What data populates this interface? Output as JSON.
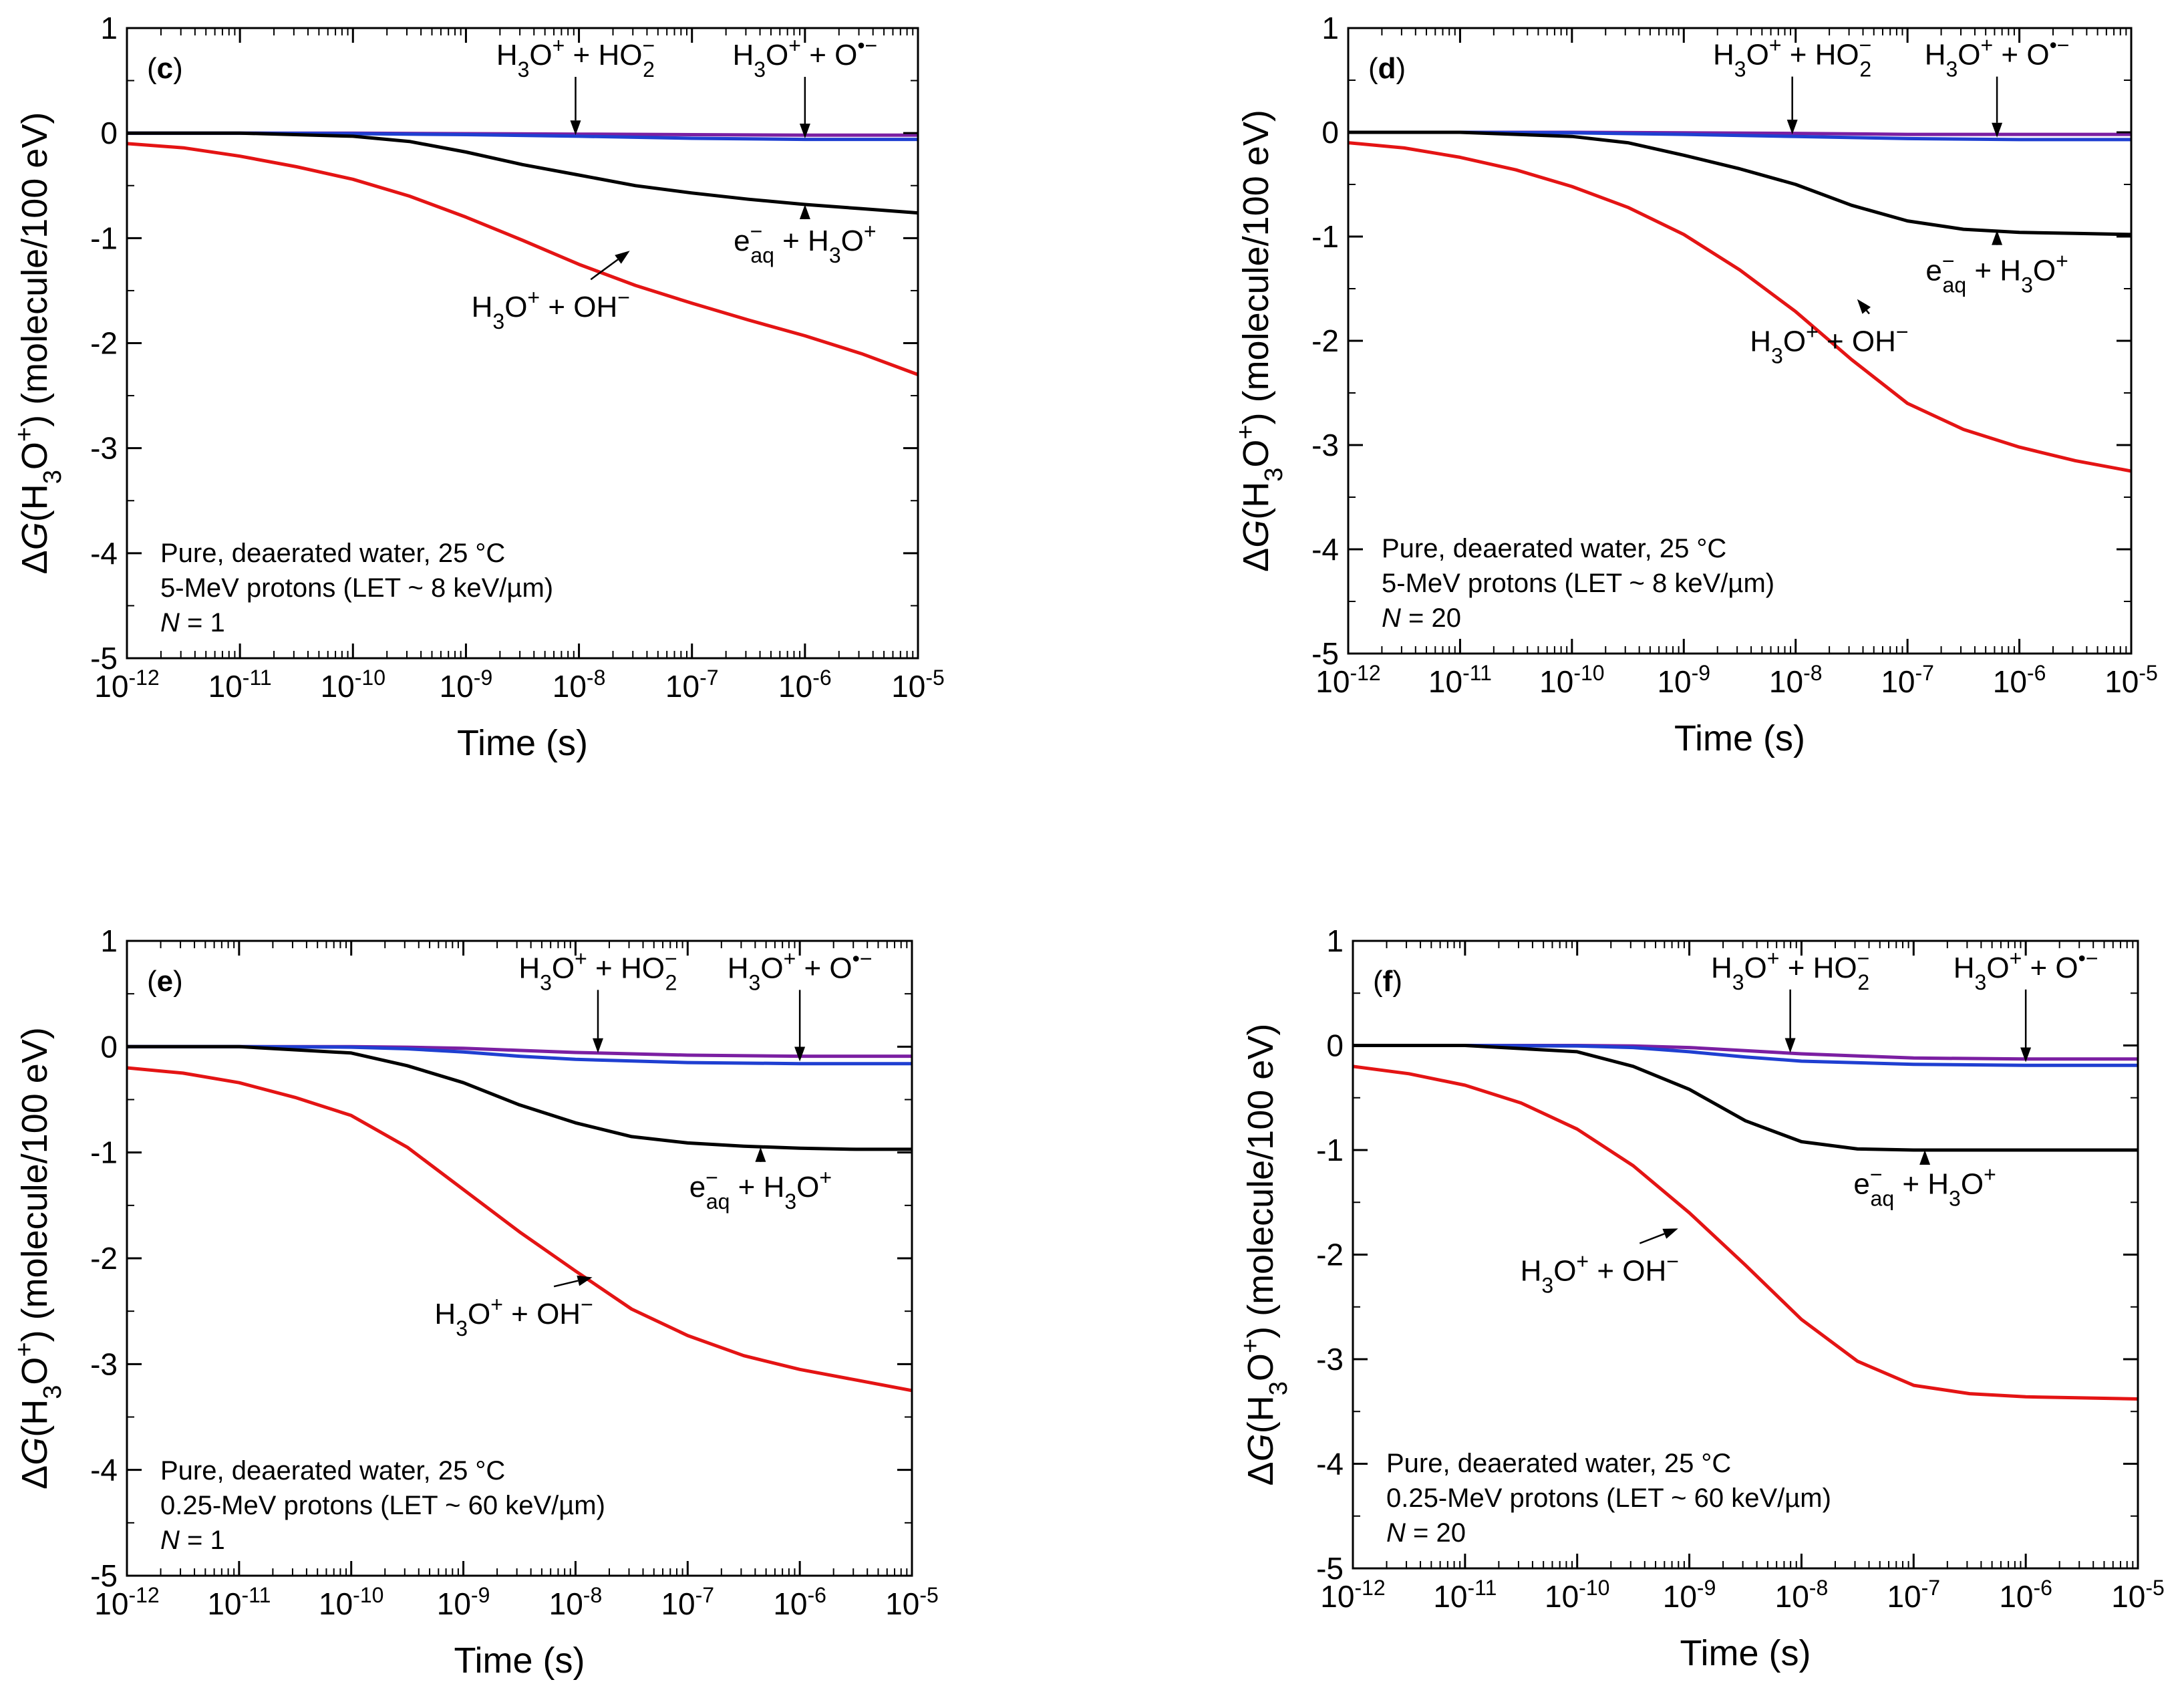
{
  "chart_data": [
    {
      "type": "line",
      "panel_label": "c",
      "xlabel": "Time (s)",
      "ylabel": {
        "prefix": "Δ",
        "g": "G",
        "open": "(H",
        "sub3": "3",
        "o": "O",
        "plus": "+",
        "close": ")",
        "units": " (molecule/100 eV)"
      },
      "xscale": "log",
      "xlim": [
        -12,
        -5
      ],
      "ylim": [
        -5,
        1
      ],
      "x_ticks": [
        -12,
        -11,
        -10,
        -9,
        -8,
        -7,
        -6,
        -5
      ],
      "y_ticks": [
        1,
        0,
        -1,
        -2,
        -3,
        -4,
        -5
      ],
      "conditions": [
        "Pure, deaerated water, 25 °C",
        "5-MeV protons (LET ~ 8 keV/µm)",
        "N = 1"
      ],
      "series": [
        {
          "name": "H3O+ + O•-",
          "color": "#7b1fa2",
          "x": [
            -12,
            -11,
            -10,
            -9,
            -8,
            -7,
            -6,
            -5
          ],
          "values": [
            0,
            0,
            0,
            -0.005,
            -0.01,
            -0.015,
            -0.02,
            -0.02
          ]
        },
        {
          "name": "H3O+ + HO2-",
          "color": "#1f3fd1",
          "x": [
            -12,
            -11,
            -10,
            -9,
            -8,
            -7,
            -6,
            -5
          ],
          "values": [
            0,
            0,
            -0.005,
            -0.015,
            -0.03,
            -0.05,
            -0.06,
            -0.06
          ]
        },
        {
          "name": "e-aq + H3O+",
          "color": "#000000",
          "x": [
            -12,
            -11,
            -10,
            -9.5,
            -9,
            -8.5,
            -8,
            -7.5,
            -7,
            -6.5,
            -6,
            -5.5,
            -5
          ],
          "values": [
            0,
            0,
            -0.03,
            -0.08,
            -0.18,
            -0.3,
            -0.4,
            -0.5,
            -0.57,
            -0.63,
            -0.68,
            -0.72,
            -0.76
          ]
        },
        {
          "name": "H3O+ + OH-",
          "color": "#e41414",
          "x": [
            -12,
            -11.5,
            -11,
            -10.5,
            -10,
            -9.5,
            -9,
            -8.5,
            -8,
            -7.5,
            -7,
            -6.5,
            -6,
            -5.5,
            -5
          ],
          "values": [
            -0.1,
            -0.14,
            -0.22,
            -0.32,
            -0.44,
            -0.6,
            -0.8,
            -1.02,
            -1.25,
            -1.45,
            -1.62,
            -1.78,
            -1.93,
            -2.1,
            -2.3
          ]
        }
      ],
      "annotations": [
        {
          "text": "H3O+ + HO2-",
          "ax": -8.03,
          "ay": 0.65,
          "px": -8.03,
          "py": -0.02
        },
        {
          "text": "H3O+ + O•-",
          "ax": -6.0,
          "ay": 0.65,
          "px": -6.0,
          "py": -0.05
        },
        {
          "text": "e-aq + H3O+",
          "ax": -6.0,
          "ay": -1.12,
          "px": -6.0,
          "py": -0.68
        },
        {
          "text": "H3O+ + OH-",
          "ax": -8.25,
          "ay": -1.75,
          "px": -7.55,
          "py": -1.12
        }
      ]
    },
    {
      "type": "line",
      "panel_label": "d",
      "xlabel": "Time (s)",
      "ylabel": {
        "prefix": "Δ",
        "g": "G",
        "open": "(H",
        "sub3": "3",
        "o": "O",
        "plus": "+",
        "close": ")",
        "units": " (molecule/100 eV)"
      },
      "xscale": "log",
      "xlim": [
        -12,
        -5
      ],
      "ylim": [
        -5,
        1
      ],
      "x_ticks": [
        -12,
        -11,
        -10,
        -9,
        -8,
        -7,
        -6,
        -5
      ],
      "y_ticks": [
        1,
        0,
        -1,
        -2,
        -3,
        -4,
        -5
      ],
      "conditions": [
        "Pure, deaerated water, 25 °C",
        "5-MeV protons (LET ~ 8 keV/µm)",
        "N = 20"
      ],
      "series": [
        {
          "name": "H3O+ + O•-",
          "color": "#7b1fa2",
          "x": [
            -12,
            -11,
            -10,
            -9,
            -8,
            -7,
            -6,
            -5
          ],
          "values": [
            0,
            0,
            0,
            -0.005,
            -0.01,
            -0.02,
            -0.02,
            -0.02
          ]
        },
        {
          "name": "H3O+ + HO2-",
          "color": "#1f3fd1",
          "x": [
            -12,
            -11,
            -10,
            -9,
            -8,
            -7,
            -6,
            -5
          ],
          "values": [
            0,
            0,
            -0.005,
            -0.02,
            -0.04,
            -0.06,
            -0.07,
            -0.07
          ]
        },
        {
          "name": "e-aq + H3O+",
          "color": "#000000",
          "x": [
            -12,
            -11,
            -10,
            -9.5,
            -9,
            -8.5,
            -8,
            -7.5,
            -7,
            -6.5,
            -6,
            -5.5,
            -5
          ],
          "values": [
            0,
            0,
            -0.04,
            -0.1,
            -0.22,
            -0.35,
            -0.5,
            -0.7,
            -0.85,
            -0.93,
            -0.96,
            -0.97,
            -0.98
          ]
        },
        {
          "name": "H3O+ + OH-",
          "color": "#e41414",
          "x": [
            -12,
            -11.5,
            -11,
            -10.5,
            -10,
            -9.5,
            -9,
            -8.5,
            -8,
            -7.5,
            -7,
            -6.5,
            -6,
            -5.5,
            -5
          ],
          "values": [
            -0.1,
            -0.15,
            -0.24,
            -0.36,
            -0.52,
            -0.72,
            -0.98,
            -1.32,
            -1.72,
            -2.18,
            -2.6,
            -2.85,
            -3.02,
            -3.15,
            -3.25
          ]
        }
      ],
      "annotations": [
        {
          "text": "H3O+ + HO2-",
          "ax": -8.03,
          "ay": 0.65,
          "px": -8.03,
          "py": -0.02
        },
        {
          "text": "H3O+ + O•-",
          "ax": -6.2,
          "ay": 0.65,
          "px": -6.2,
          "py": -0.05
        },
        {
          "text": "e-aq + H3O+",
          "ax": -6.2,
          "ay": -1.42,
          "px": -6.2,
          "py": -0.94
        },
        {
          "text": "H3O+ + OH-",
          "ax": -7.7,
          "ay": -2.1,
          "px": -7.45,
          "py": -1.6
        }
      ]
    },
    {
      "type": "line",
      "panel_label": "e",
      "xlabel": "Time (s)",
      "ylabel": {
        "prefix": "Δ",
        "g": "G",
        "open": "(H",
        "sub3": "3",
        "o": "O",
        "plus": "+",
        "close": ")",
        "units": " (molecule/100 eV)"
      },
      "xscale": "log",
      "xlim": [
        -12,
        -5
      ],
      "ylim": [
        -5,
        1
      ],
      "x_ticks": [
        -12,
        -11,
        -10,
        -9,
        -8,
        -7,
        -6,
        -5
      ],
      "y_ticks": [
        1,
        0,
        -1,
        -2,
        -3,
        -4,
        -5
      ],
      "conditions": [
        "Pure, deaerated water, 25 °C",
        "0.25-MeV protons (LET ~ 60 keV/µm)",
        "N = 1"
      ],
      "series": [
        {
          "name": "H3O+ + O•-",
          "color": "#7b1fa2",
          "x": [
            -12,
            -11,
            -10,
            -9.5,
            -9,
            -8.5,
            -8,
            -7,
            -6,
            -5
          ],
          "values": [
            0,
            0,
            0,
            -0.005,
            -0.015,
            -0.035,
            -0.055,
            -0.08,
            -0.09,
            -0.09
          ]
        },
        {
          "name": "H3O+ + HO2-",
          "color": "#1f3fd1",
          "x": [
            -12,
            -11,
            -10,
            -9.5,
            -9,
            -8.5,
            -8,
            -7,
            -6,
            -5
          ],
          "values": [
            0,
            0,
            -0.005,
            -0.02,
            -0.05,
            -0.09,
            -0.12,
            -0.15,
            -0.16,
            -0.16
          ]
        },
        {
          "name": "e-aq + H3O+",
          "color": "#000000",
          "x": [
            -12,
            -11,
            -10,
            -9.5,
            -9,
            -8.5,
            -8,
            -7.5,
            -7,
            -6.5,
            -6,
            -5.5,
            -5
          ],
          "values": [
            0,
            0,
            -0.06,
            -0.18,
            -0.34,
            -0.55,
            -0.72,
            -0.85,
            -0.91,
            -0.94,
            -0.96,
            -0.97,
            -0.97
          ]
        },
        {
          "name": "H3O+ + OH-",
          "color": "#e41414",
          "x": [
            -12,
            -11.5,
            -11,
            -10.5,
            -10,
            -9.5,
            -9,
            -8.5,
            -8,
            -7.5,
            -7,
            -6.5,
            -6,
            -5.5,
            -5
          ],
          "values": [
            -0.2,
            -0.25,
            -0.34,
            -0.48,
            -0.65,
            -0.95,
            -1.35,
            -1.75,
            -2.12,
            -2.48,
            -2.73,
            -2.92,
            -3.05,
            -3.15,
            -3.25
          ]
        }
      ],
      "annotations": [
        {
          "text": "H3O+ + HO2-",
          "ax": -7.8,
          "ay": 0.65,
          "px": -7.8,
          "py": -0.06
        },
        {
          "text": "H3O+ + O•-",
          "ax": -6.0,
          "ay": 0.65,
          "px": -6.0,
          "py": -0.14
        },
        {
          "text": "e-aq + H3O+",
          "ax": -6.35,
          "ay": -1.42,
          "px": -6.35,
          "py": -0.95
        },
        {
          "text": "H3O+ + OH-",
          "ax": -8.55,
          "ay": -2.62,
          "px": -7.85,
          "py": -2.18
        }
      ]
    },
    {
      "type": "line",
      "panel_label": "f",
      "xlabel": "Time (s)",
      "ylabel": {
        "prefix": "Δ",
        "g": "G",
        "open": "(H",
        "sub3": "3",
        "o": "O",
        "plus": "+",
        "close": ")",
        "units": " (molecule/100 eV)"
      },
      "xscale": "log",
      "xlim": [
        -12,
        -5
      ],
      "ylim": [
        -5,
        1
      ],
      "x_ticks": [
        -12,
        -11,
        -10,
        -9,
        -8,
        -7,
        -6,
        -5
      ],
      "y_ticks": [
        1,
        0,
        -1,
        -2,
        -3,
        -4,
        -5
      ],
      "conditions": [
        "Pure, deaerated water, 25 °C",
        "0.25-MeV protons (LET ~ 60 keV/µm)",
        "N = 20"
      ],
      "series": [
        {
          "name": "H3O+ + O•-",
          "color": "#7b1fa2",
          "x": [
            -12,
            -11,
            -10,
            -9.5,
            -9,
            -8.5,
            -8,
            -7,
            -6,
            -5
          ],
          "values": [
            0,
            0,
            0,
            -0.005,
            -0.02,
            -0.05,
            -0.08,
            -0.12,
            -0.13,
            -0.13
          ]
        },
        {
          "name": "H3O+ + HO2-",
          "color": "#1f3fd1",
          "x": [
            -12,
            -11,
            -10,
            -9.5,
            -9,
            -8.5,
            -8,
            -7,
            -6,
            -5
          ],
          "values": [
            0,
            0,
            -0.005,
            -0.02,
            -0.06,
            -0.11,
            -0.15,
            -0.18,
            -0.19,
            -0.19
          ]
        },
        {
          "name": "e-aq + H3O+",
          "color": "#000000",
          "x": [
            -12,
            -11,
            -10,
            -9.5,
            -9,
            -8.5,
            -8,
            -7.5,
            -7,
            -6.5,
            -6,
            -5.5,
            -5
          ],
          "values": [
            0,
            0,
            -0.06,
            -0.2,
            -0.42,
            -0.72,
            -0.92,
            -0.99,
            -1.0,
            -1.0,
            -1.0,
            -1.0,
            -1.0
          ]
        },
        {
          "name": "H3O+ + OH-",
          "color": "#e41414",
          "x": [
            -12,
            -11.5,
            -11,
            -10.5,
            -10,
            -9.5,
            -9,
            -8.5,
            -8,
            -7.5,
            -7,
            -6.5,
            -6,
            -5.5,
            -5
          ],
          "values": [
            -0.2,
            -0.27,
            -0.38,
            -0.55,
            -0.8,
            -1.15,
            -1.6,
            -2.1,
            -2.62,
            -3.02,
            -3.25,
            -3.33,
            -3.36,
            -3.37,
            -3.38
          ]
        }
      ],
      "annotations": [
        {
          "text": "H3O+ + HO2-",
          "ax": -8.1,
          "ay": 0.65,
          "px": -8.1,
          "py": -0.07
        },
        {
          "text": "H3O+ + O•-",
          "ax": -6.0,
          "ay": 0.65,
          "px": -6.0,
          "py": -0.16
        },
        {
          "text": "e-aq + H3O+",
          "ax": -6.9,
          "ay": -1.42,
          "px": -6.9,
          "py": -1.0
        },
        {
          "text": "H3O+ + OH-",
          "ax": -9.8,
          "ay": -2.25,
          "px": -9.1,
          "py": -1.75
        }
      ]
    }
  ]
}
